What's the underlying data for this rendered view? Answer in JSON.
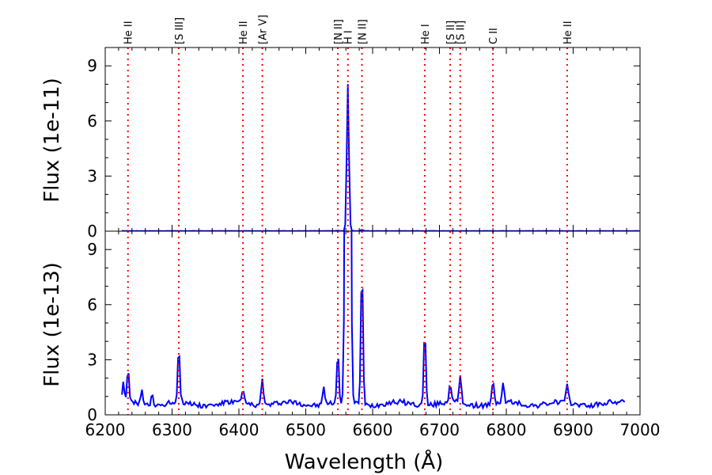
{
  "chart_data": {
    "type": "line",
    "xlabel": "Wavelength (Å)",
    "xlim": [
      6200,
      7000
    ],
    "xticks": [
      6200,
      6300,
      6400,
      6500,
      6600,
      6700,
      6800,
      6900,
      7000
    ],
    "colors": {
      "spectrum": "#0000ff",
      "line_marker": "#ff0000",
      "axes": "#000000"
    },
    "lines": [
      {
        "label": "He II",
        "wavelength": 6234
      },
      {
        "label": "[S III]",
        "wavelength": 6310
      },
      {
        "label": "He II",
        "wavelength": 6406
      },
      {
        "label": "[Ar V]",
        "wavelength": 6435
      },
      {
        "label": "[N II]",
        "wavelength": 6548
      },
      {
        "label": "H I",
        "wavelength": 6563
      },
      {
        "label": "[N II]",
        "wavelength": 6584
      },
      {
        "label": "He I",
        "wavelength": 6678
      },
      {
        "label": "[S II]",
        "wavelength": 6716
      },
      {
        "label": "[S II]",
        "wavelength": 6731
      },
      {
        "label": "C II",
        "wavelength": 6780
      },
      {
        "label": "He II",
        "wavelength": 6891
      }
    ],
    "panels": [
      {
        "ylabel": "Flux (1e-11)",
        "ylim": [
          0,
          10
        ],
        "yticks": [
          0,
          3,
          6,
          9
        ],
        "baseline": 0.01,
        "peaks": [
          {
            "x": 6563,
            "y": 8.0
          },
          {
            "x": 6584,
            "y": 0.08
          },
          {
            "x": 6548,
            "y": 0.03
          }
        ]
      },
      {
        "ylabel": "Flux (1e-13)",
        "ylim": [
          0,
          10
        ],
        "yticks": [
          0,
          3,
          6,
          9
        ],
        "baseline": 0.6,
        "peaks": [
          {
            "x": 6227,
            "y": 1.7
          },
          {
            "x": 6234,
            "y": 2.4
          },
          {
            "x": 6255,
            "y": 1.4
          },
          {
            "x": 6270,
            "y": 1.1
          },
          {
            "x": 6310,
            "y": 3.6
          },
          {
            "x": 6406,
            "y": 1.3
          },
          {
            "x": 6435,
            "y": 2.2
          },
          {
            "x": 6527,
            "y": 1.6
          },
          {
            "x": 6548,
            "y": 3.2
          },
          {
            "x": 6563,
            "y": 100
          },
          {
            "x": 6584,
            "y": 8.1
          },
          {
            "x": 6678,
            "y": 4.7
          },
          {
            "x": 6716,
            "y": 1.7
          },
          {
            "x": 6731,
            "y": 2.1
          },
          {
            "x": 6780,
            "y": 1.8
          },
          {
            "x": 6795,
            "y": 1.6
          },
          {
            "x": 6891,
            "y": 1.5
          }
        ],
        "x_end": 6978
      }
    ]
  }
}
